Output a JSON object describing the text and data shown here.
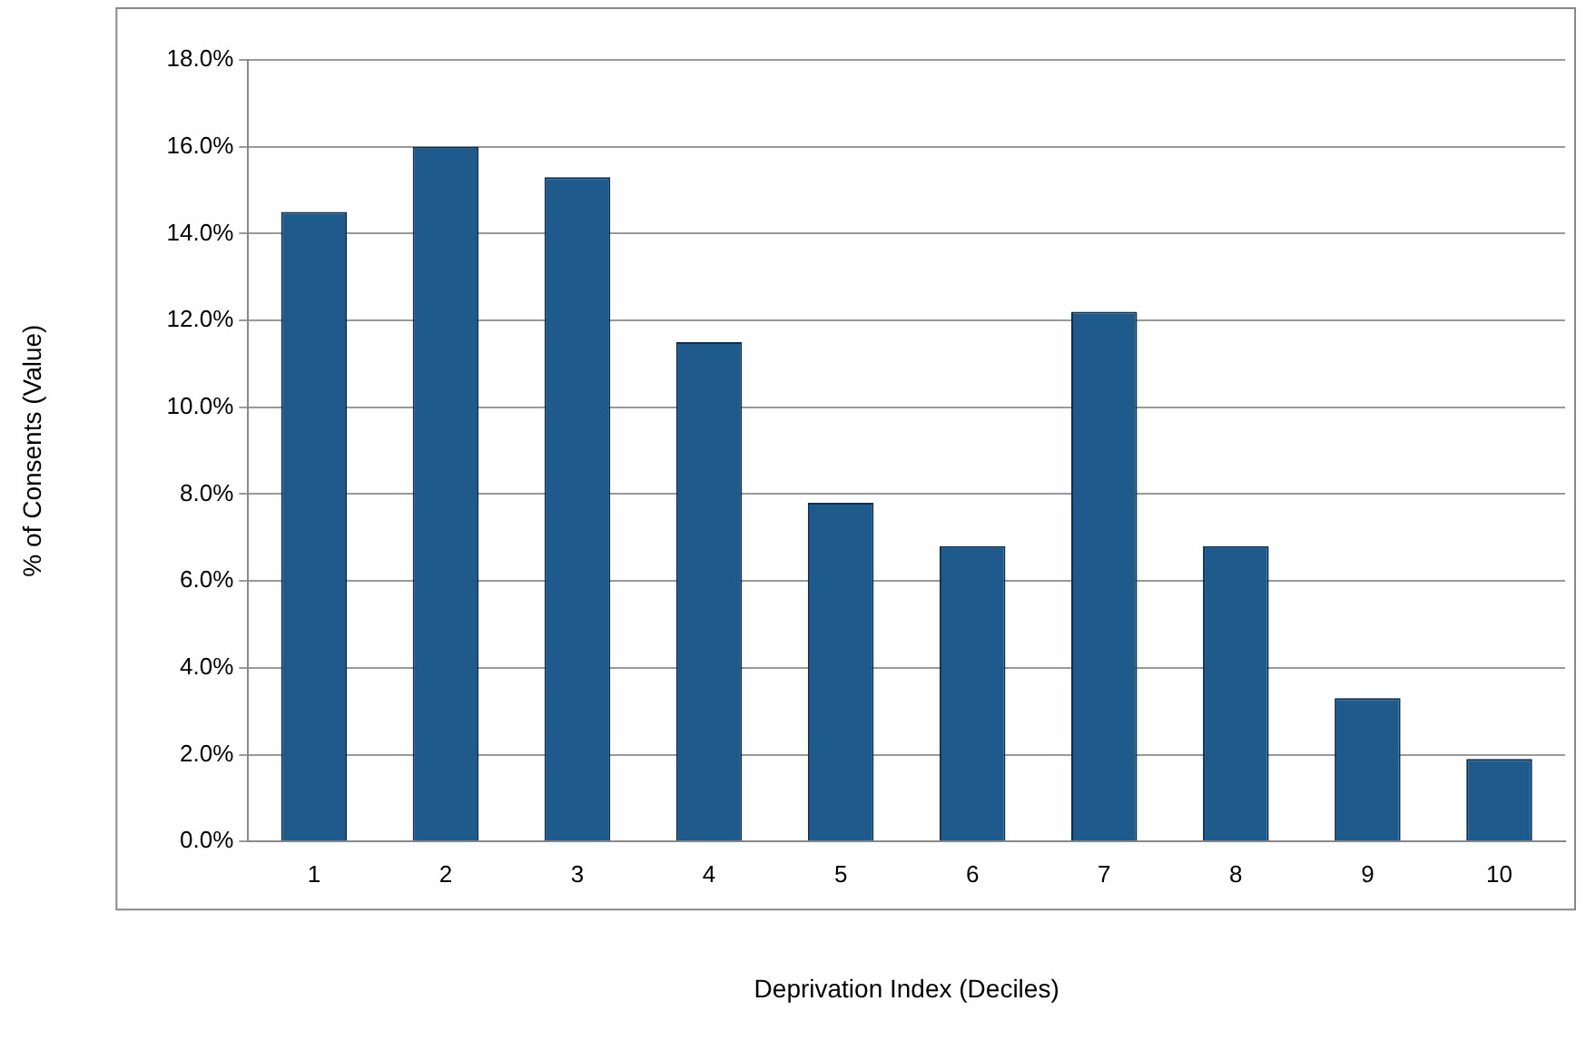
{
  "chart_data": {
    "type": "bar",
    "xlabel": "Deprivation Index (Deciles)",
    "ylabel": "% of Consents (Value)",
    "categories": [
      "1",
      "2",
      "3",
      "4",
      "5",
      "6",
      "7",
      "8",
      "9",
      "10"
    ],
    "values": [
      14.5,
      16.0,
      15.3,
      11.5,
      7.8,
      6.8,
      12.2,
      6.8,
      3.3,
      1.9
    ],
    "color": "#1f5a8c",
    "ylim": [
      0,
      18
    ],
    "yticks": [
      {
        "value": 0,
        "label": "0.0%"
      },
      {
        "value": 2,
        "label": "2.0%"
      },
      {
        "value": 4,
        "label": "4.0%"
      },
      {
        "value": 6,
        "label": "6.0%"
      },
      {
        "value": 8,
        "label": "8.0%"
      },
      {
        "value": 10,
        "label": "10.0%"
      },
      {
        "value": 12,
        "label": "12.0%"
      },
      {
        "value": 14,
        "label": "14.0%"
      },
      {
        "value": 16,
        "label": "16.0%"
      },
      {
        "value": 18,
        "label": "18.0%"
      }
    ],
    "grid": "y",
    "legend": false
  }
}
